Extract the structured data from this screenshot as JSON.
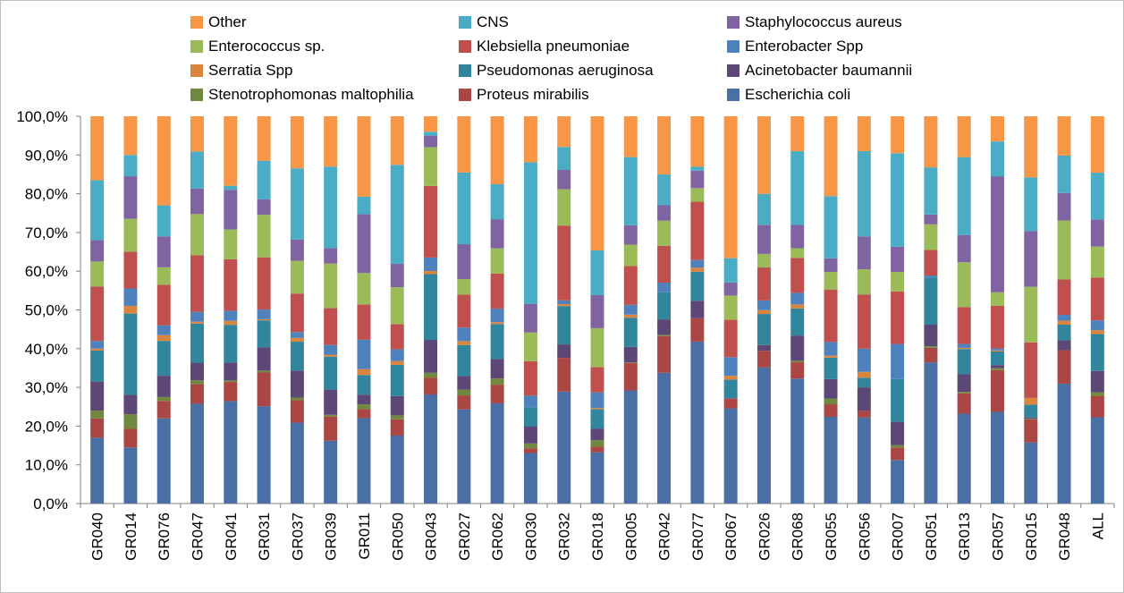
{
  "chart_data": {
    "type": "bar",
    "stacked": true,
    "grid": false,
    "legend_position": "top",
    "ylim": [
      0,
      100
    ],
    "yticks": [
      "0,0%",
      "10,0%",
      "20,0%",
      "30,0%",
      "40,0%",
      "50,0%",
      "60,0%",
      "70,0%",
      "80,0%",
      "90,0%",
      "100,0%"
    ],
    "categories": [
      "GR040",
      "GR014",
      "GR076",
      "GR047",
      "GR041",
      "GR031",
      "GR037",
      "GR039",
      "GR011",
      "GR050",
      "GR043",
      "GR027",
      "GR062",
      "GR030",
      "GR032",
      "GR018",
      "GR005",
      "GR042",
      "GR077",
      "GR067",
      "GR026",
      "GR068",
      "GR055",
      "GR056",
      "GR007",
      "GR051",
      "GR013",
      "GR057",
      "GR015",
      "GR048",
      "ALL"
    ],
    "legend_order": [
      "Other",
      "CNS",
      "Staphylococcus aureus",
      "Enterococcus sp.",
      "Klebsiella pneumoniae",
      "Enterobacter Spp",
      "Serratia Spp",
      "Pseudomonas aeruginosa",
      "Acinetobacter baumannii",
      "Stenotrophomonas maltophilia",
      "Proteus mirabilis",
      "Escherichia coli"
    ],
    "series": [
      {
        "name": "Escherichia coli",
        "color": "#4a6fa5",
        "values": [
          17,
          14.5,
          22,
          25.5,
          25.8,
          25.2,
          21,
          16.2,
          21.8,
          17.5,
          28.2,
          24.3,
          25.8,
          13.2,
          29.2,
          13.2,
          29.1,
          33.8,
          41.7,
          25.5,
          35.1,
          32.2,
          22.3,
          22.2,
          11.2,
          35.9,
          23.1,
          23.7,
          16.5,
          30.5,
          22.2
        ]
      },
      {
        "name": "Proteus mirabilis",
        "color": "#aa4643",
        "values": [
          5,
          4.8,
          4.5,
          5,
          4.8,
          8.7,
          5.8,
          6.2,
          2.3,
          4.2,
          4.3,
          3.6,
          4.8,
          1.2,
          8.8,
          1.4,
          7,
          9.5,
          6,
          2.7,
          4.3,
          4.2,
          3.2,
          1.8,
          3.2,
          3.7,
          5.2,
          10.8,
          6.2,
          8.5,
          5.4
        ]
      },
      {
        "name": "Stenotrophomonas maltophilia",
        "color": "#71893f",
        "values": [
          2,
          3.8,
          1,
          1,
          0.4,
          0.5,
          0.7,
          0.5,
          1.2,
          1,
          1.3,
          1.5,
          1.6,
          1.3,
          0,
          1.7,
          0.2,
          0.3,
          0,
          0,
          0,
          0.4,
          1.5,
          0,
          0.6,
          0.4,
          0.4,
          0.5,
          0.2,
          0,
          1
        ]
      },
      {
        "name": "Acinetobacter baumannii",
        "color": "#5c4776",
        "values": [
          7.5,
          5,
          5.5,
          4.5,
          4.5,
          6,
          7,
          6.5,
          2.5,
          5,
          8.5,
          3.5,
          5,
          4.5,
          3.5,
          3,
          4,
          4,
          4.5,
          0,
          1.5,
          6.5,
          5,
          6,
          6,
          5.5,
          4.5,
          0.8,
          0.3,
          2.5,
          5.5
        ]
      },
      {
        "name": "Pseudomonas aeruginosa",
        "color": "#31859c",
        "values": [
          8,
          21,
          9,
          10,
          9.5,
          7,
          7.5,
          8.5,
          5,
          8,
          17,
          8,
          9,
          5,
          10,
          5,
          7.5,
          7,
          7.5,
          5,
          8,
          7,
          5.5,
          2.5,
          11,
          12,
          6.5,
          3.5,
          3.5,
          4,
          9.5
        ]
      },
      {
        "name": "Serratia Spp",
        "color": "#db843d",
        "values": [
          0.5,
          2,
          1.5,
          0.5,
          1,
          0.3,
          1,
          0.5,
          1.5,
          1,
          0.8,
          1,
          0.5,
          0,
          0.5,
          0.3,
          0.8,
          0,
          1,
          1,
          1,
          1,
          0.5,
          1.5,
          0,
          0,
          0.3,
          0.3,
          1.8,
          1,
          1
        ]
      },
      {
        "name": "Enterobacter Spp",
        "color": "#4f81bd",
        "values": [
          2,
          4.5,
          2.5,
          2.5,
          2.5,
          2.5,
          1.5,
          2.5,
          7.5,
          3,
          3.5,
          3.5,
          3.5,
          3,
          1,
          4,
          2.5,
          2.5,
          2,
          5,
          2.5,
          3,
          3.5,
          6,
          9,
          0.5,
          1,
          0.5,
          0,
          1.5,
          2.5
        ]
      },
      {
        "name": "Klebsiella pneumoniae",
        "color": "#c0504d",
        "values": [
          14,
          9.5,
          10.5,
          14.5,
          13,
          13.5,
          10,
          9.5,
          9,
          6.5,
          18.5,
          8.5,
          9,
          9,
          19.5,
          6.5,
          10,
          9.5,
          15,
          10,
          8.5,
          9,
          13.5,
          14,
          13.5,
          6.5,
          9.5,
          11,
          15,
          9,
          11
        ]
      },
      {
        "name": "Enterococcus sp.",
        "color": "#9bbb59",
        "values": [
          6.5,
          8.5,
          4.5,
          10.5,
          7.5,
          11,
          8.5,
          11.5,
          8,
          9.5,
          10,
          4,
          6.5,
          7.5,
          9.5,
          10,
          5.5,
          6.5,
          3.5,
          6.5,
          3.5,
          2.5,
          4.5,
          6.5,
          5,
          6.5,
          11.5,
          3.5,
          15,
          15,
          8
        ]
      },
      {
        "name": "Staphylococcus aureus",
        "color": "#8064a2",
        "values": [
          5.5,
          11,
          8,
          6.5,
          10,
          4,
          5.5,
          4,
          15,
          6,
          3,
          9,
          7.5,
          7.5,
          5,
          8.5,
          5,
          4,
          4.5,
          3.5,
          7.5,
          6,
          3.5,
          8.5,
          6.5,
          2.5,
          7,
          30,
          15,
          7,
          7
        ]
      },
      {
        "name": "CNS",
        "color": "#4bacc6",
        "values": [
          15.5,
          5.5,
          8,
          9.5,
          1,
          10,
          18.5,
          21,
          4.5,
          25.5,
          1,
          18.5,
          9,
          37,
          6,
          11.5,
          17.5,
          8,
          1,
          6.5,
          8,
          19,
          16,
          22,
          24,
          12,
          20,
          9,
          14.5,
          9.5,
          12
        ]
      },
      {
        "name": "Other",
        "color": "#f79646",
        "values": [
          16.5,
          10,
          23,
          9,
          17.5,
          11.5,
          13.5,
          13,
          20.5,
          12.5,
          4,
          14.5,
          17.5,
          12,
          8,
          34.5,
          10.5,
          15,
          13,
          38,
          20,
          9,
          20.5,
          9,
          9.5,
          13,
          10.5,
          6.5,
          16.5,
          10,
          14.5
        ]
      }
    ]
  }
}
